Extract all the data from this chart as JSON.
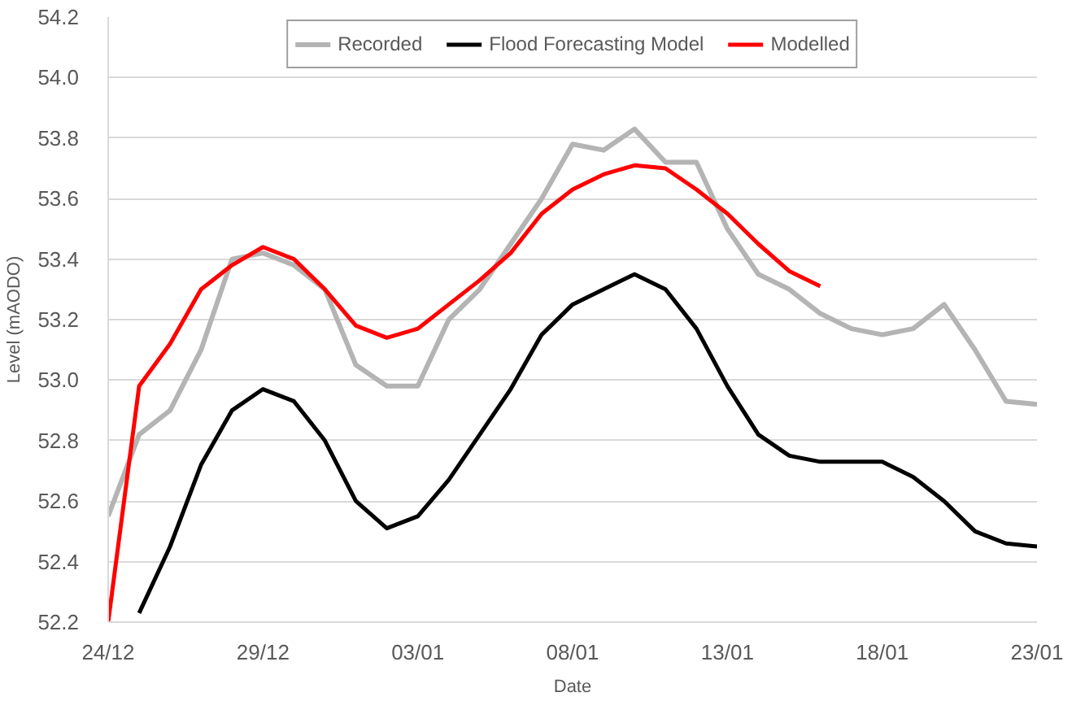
{
  "chart_data": {
    "type": "line",
    "xlabel": "Date",
    "ylabel": "Level (mAODO)",
    "categories": [
      "24/12",
      null,
      null,
      null,
      null,
      "29/12",
      null,
      null,
      null,
      null,
      "03/01",
      null,
      null,
      null,
      null,
      "08/01",
      null,
      null,
      null,
      null,
      "13/01",
      null,
      null,
      null,
      null,
      "18/01",
      null,
      null,
      null,
      null,
      "23/01"
    ],
    "ylim": [
      52.2,
      54.2
    ],
    "yticks": [
      52.2,
      52.4,
      52.6,
      52.8,
      {
        "value": 53.0,
        "label": "53.0"
      },
      53.2,
      53.4,
      53.6,
      53.8,
      {
        "value": 54.0,
        "label": "54.0"
      },
      54.2
    ],
    "grid": "y",
    "legend": "top",
    "line_style": "solid",
    "series": [
      {
        "name": "Recorded",
        "color": "#b4b4b4",
        "values": [
          52.55,
          52.82,
          52.9,
          53.1,
          53.4,
          53.42,
          53.38,
          53.3,
          53.05,
          52.98,
          52.98,
          53.2,
          53.3,
          53.45,
          53.6,
          53.78,
          53.76,
          53.83,
          53.72,
          53.72,
          53.5,
          53.35,
          53.3,
          53.22,
          53.17,
          53.15,
          53.17,
          53.25,
          53.1,
          52.93,
          52.92
        ]
      },
      {
        "name": "Flood Forecasting Model",
        "color": "#000000",
        "values": [
          null,
          52.23,
          52.45,
          52.72,
          52.9,
          52.97,
          52.93,
          52.8,
          52.6,
          52.51,
          52.55,
          52.67,
          52.82,
          52.97,
          53.15,
          53.25,
          53.3,
          53.35,
          53.3,
          53.17,
          52.98,
          52.82,
          52.75,
          52.73,
          52.73,
          52.73,
          52.68,
          52.6,
          52.5,
          52.46,
          52.45
        ]
      },
      {
        "name": "Modelled",
        "color": "#ff0000",
        "values": [
          52.2,
          52.98,
          53.12,
          53.3,
          53.38,
          53.44,
          53.4,
          53.3,
          53.18,
          53.14,
          53.17,
          53.25,
          53.33,
          53.42,
          53.55,
          53.63,
          53.68,
          53.71,
          53.7,
          53.63,
          53.55,
          53.45,
          53.36,
          53.31,
          null,
          null,
          null,
          null,
          null,
          null,
          null
        ]
      }
    ]
  }
}
